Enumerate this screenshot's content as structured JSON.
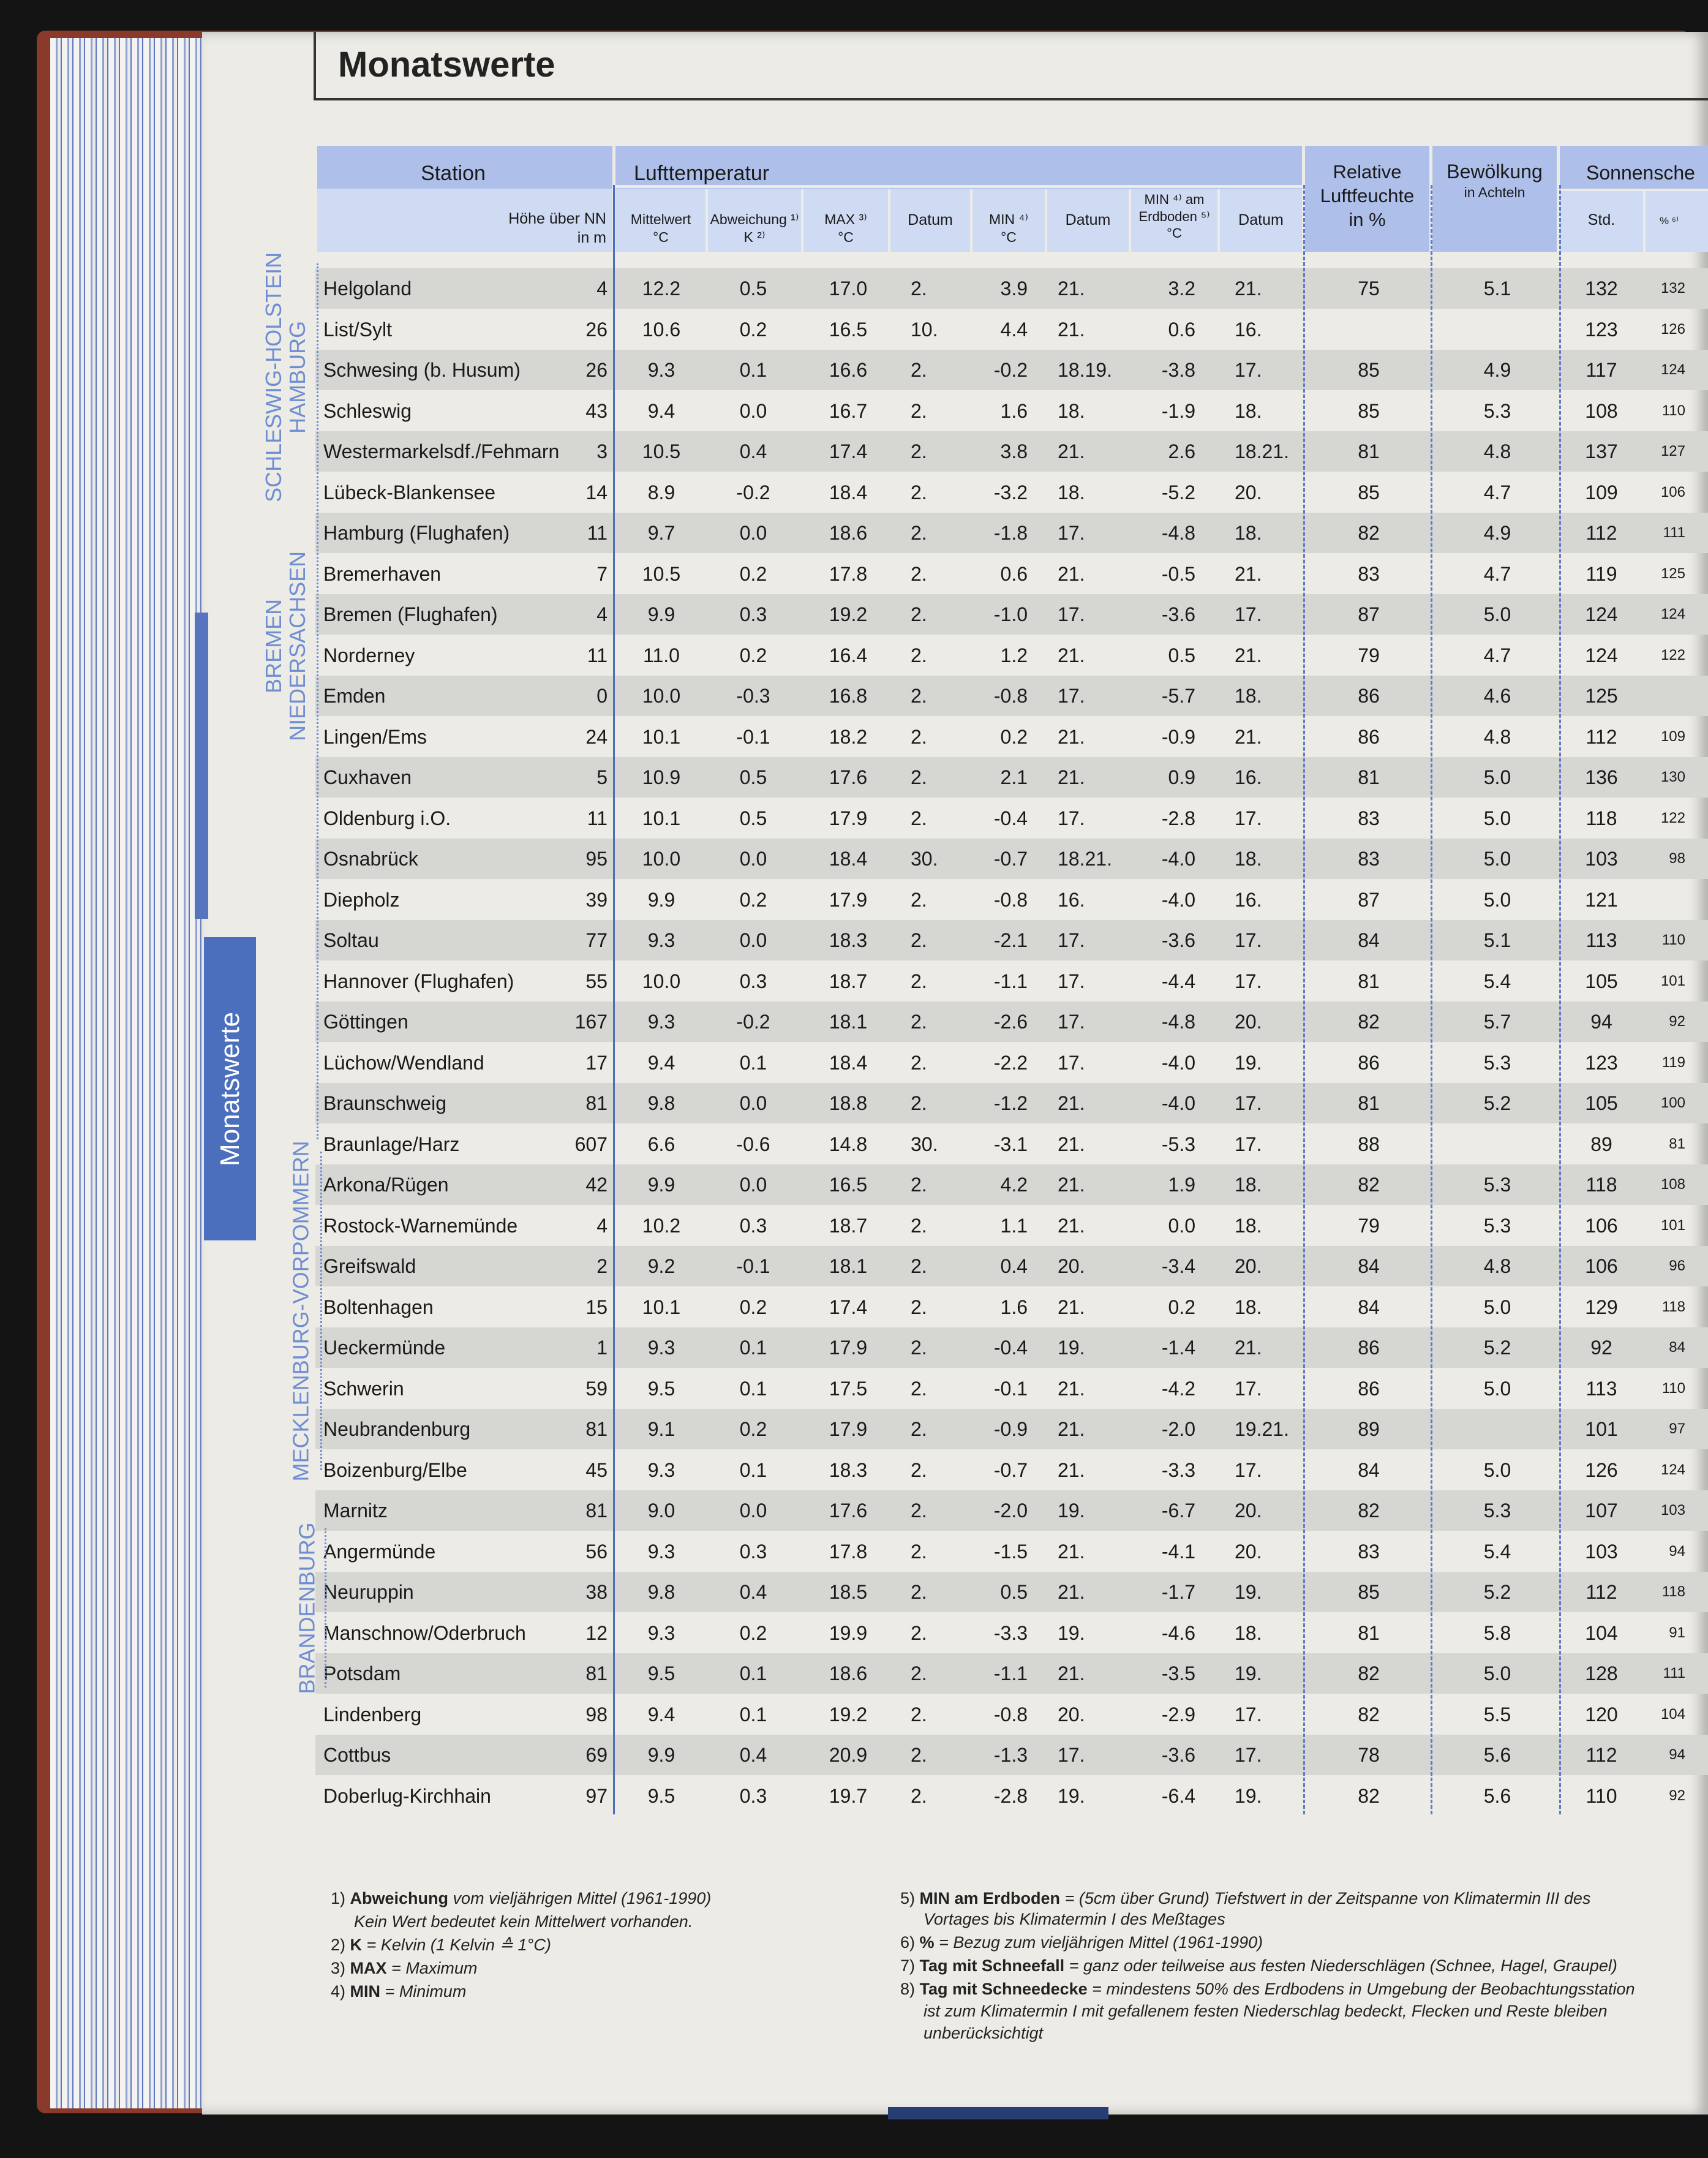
{
  "page": {
    "title": "Monatswerte",
    "side_tab": "Monatswerte"
  },
  "header": {
    "station": "Station",
    "hoehe": "Höhe über NN\nin m",
    "lufttemperatur": "Lufttemperatur",
    "mittelwert": "Mittelwert\n°C",
    "abweichung": "Abweichung ¹⁾\nK ²⁾",
    "max": "MAX ³⁾\n°C",
    "datum1": "Datum",
    "min": "MIN ⁴⁾\n°C",
    "datum2": "Datum",
    "min_erd": "MIN ⁴⁾ am\nErdboden ⁵⁾\n°C",
    "datum3": "Datum",
    "luftfeuchte": "Relative\nLuftfeuchte\nin %",
    "bewoelkung": "Bewölkung",
    "bewoelkung_unit": "in Achteln",
    "sonnenschein": "Sonnensche",
    "std": "Std.",
    "pct": "% ⁶⁾"
  },
  "states": [
    {
      "label": "SCHLESWIG-HOLSTEIN\nHAMBURG"
    },
    {
      "label": "BREMEN\nNIEDERSACHSEN"
    },
    {
      "label": "MECKLENBURG-VORPOMMERN"
    },
    {
      "label": "BRANDENBURG"
    }
  ],
  "rows": [
    {
      "station": "Helgoland",
      "hoehe": "4",
      "mittel": "12.2",
      "abw": "0.5",
      "max": "17.0",
      "dmax": "2.",
      "min": "3.9",
      "dmin": "21.",
      "erd": "3.2",
      "derd": "21.",
      "rf": "75",
      "bew": "5.1",
      "std": "132",
      "pct": "132"
    },
    {
      "station": "List/Sylt",
      "hoehe": "26",
      "mittel": "10.6",
      "abw": "0.2",
      "max": "16.5",
      "dmax": "10.",
      "min": "4.4",
      "dmin": "21.",
      "erd": "0.6",
      "derd": "16.",
      "rf": "",
      "bew": "",
      "std": "123",
      "pct": "126"
    },
    {
      "station": "Schwesing (b. Husum)",
      "hoehe": "26",
      "mittel": "9.3",
      "abw": "0.1",
      "max": "16.6",
      "dmax": "2.",
      "min": "-0.2",
      "dmin": "18.19.",
      "erd": "-3.8",
      "derd": "17.",
      "rf": "85",
      "bew": "4.9",
      "std": "117",
      "pct": "124"
    },
    {
      "station": "Schleswig",
      "hoehe": "43",
      "mittel": "9.4",
      "abw": "0.0",
      "max": "16.7",
      "dmax": "2.",
      "min": "1.6",
      "dmin": "18.",
      "erd": "-1.9",
      "derd": "18.",
      "rf": "85",
      "bew": "5.3",
      "std": "108",
      "pct": "110"
    },
    {
      "station": "Westermarkelsdf./Fehmarn",
      "hoehe": "3",
      "mittel": "10.5",
      "abw": "0.4",
      "max": "17.4",
      "dmax": "2.",
      "min": "3.8",
      "dmin": "21.",
      "erd": "2.6",
      "derd": "18.21.",
      "rf": "81",
      "bew": "4.8",
      "std": "137",
      "pct": "127"
    },
    {
      "station": "Lübeck-Blankensee",
      "hoehe": "14",
      "mittel": "8.9",
      "abw": "-0.2",
      "max": "18.4",
      "dmax": "2.",
      "min": "-3.2",
      "dmin": "18.",
      "erd": "-5.2",
      "derd": "20.",
      "rf": "85",
      "bew": "4.7",
      "std": "109",
      "pct": "106"
    },
    {
      "station": "Hamburg (Flughafen)",
      "hoehe": "11",
      "mittel": "9.7",
      "abw": "0.0",
      "max": "18.6",
      "dmax": "2.",
      "min": "-1.8",
      "dmin": "17.",
      "erd": "-4.8",
      "derd": "18.",
      "rf": "82",
      "bew": "4.9",
      "std": "112",
      "pct": "111"
    },
    {
      "station": "Bremerhaven",
      "hoehe": "7",
      "mittel": "10.5",
      "abw": "0.2",
      "max": "17.8",
      "dmax": "2.",
      "min": "0.6",
      "dmin": "21.",
      "erd": "-0.5",
      "derd": "21.",
      "rf": "83",
      "bew": "4.7",
      "std": "119",
      "pct": "125"
    },
    {
      "station": "Bremen (Flughafen)",
      "hoehe": "4",
      "mittel": "9.9",
      "abw": "0.3",
      "max": "19.2",
      "dmax": "2.",
      "min": "-1.0",
      "dmin": "17.",
      "erd": "-3.6",
      "derd": "17.",
      "rf": "87",
      "bew": "5.0",
      "std": "124",
      "pct": "124"
    },
    {
      "station": "Norderney",
      "hoehe": "11",
      "mittel": "11.0",
      "abw": "0.2",
      "max": "16.4",
      "dmax": "2.",
      "min": "1.2",
      "dmin": "21.",
      "erd": "0.5",
      "derd": "21.",
      "rf": "79",
      "bew": "4.7",
      "std": "124",
      "pct": "122"
    },
    {
      "station": "Emden",
      "hoehe": "0",
      "mittel": "10.0",
      "abw": "-0.3",
      "max": "16.8",
      "dmax": "2.",
      "min": "-0.8",
      "dmin": "17.",
      "erd": "-5.7",
      "derd": "18.",
      "rf": "86",
      "bew": "4.6",
      "std": "125",
      "pct": ""
    },
    {
      "station": "Lingen/Ems",
      "hoehe": "24",
      "mittel": "10.1",
      "abw": "-0.1",
      "max": "18.2",
      "dmax": "2.",
      "min": "0.2",
      "dmin": "21.",
      "erd": "-0.9",
      "derd": "21.",
      "rf": "86",
      "bew": "4.8",
      "std": "112",
      "pct": "109"
    },
    {
      "station": "Cuxhaven",
      "hoehe": "5",
      "mittel": "10.9",
      "abw": "0.5",
      "max": "17.6",
      "dmax": "2.",
      "min": "2.1",
      "dmin": "21.",
      "erd": "0.9",
      "derd": "16.",
      "rf": "81",
      "bew": "5.0",
      "std": "136",
      "pct": "130"
    },
    {
      "station": "Oldenburg i.O.",
      "hoehe": "11",
      "mittel": "10.1",
      "abw": "0.5",
      "max": "17.9",
      "dmax": "2.",
      "min": "-0.4",
      "dmin": "17.",
      "erd": "-2.8",
      "derd": "17.",
      "rf": "83",
      "bew": "5.0",
      "std": "118",
      "pct": "122"
    },
    {
      "station": "Osnabrück",
      "hoehe": "95",
      "mittel": "10.0",
      "abw": "0.0",
      "max": "18.4",
      "dmax": "30.",
      "min": "-0.7",
      "dmin": "18.21.",
      "erd": "-4.0",
      "derd": "18.",
      "rf": "83",
      "bew": "5.0",
      "std": "103",
      "pct": "98"
    },
    {
      "station": "Diepholz",
      "hoehe": "39",
      "mittel": "9.9",
      "abw": "0.2",
      "max": "17.9",
      "dmax": "2.",
      "min": "-0.8",
      "dmin": "16.",
      "erd": "-4.0",
      "derd": "16.",
      "rf": "87",
      "bew": "5.0",
      "std": "121",
      "pct": ""
    },
    {
      "station": "Soltau",
      "hoehe": "77",
      "mittel": "9.3",
      "abw": "0.0",
      "max": "18.3",
      "dmax": "2.",
      "min": "-2.1",
      "dmin": "17.",
      "erd": "-3.6",
      "derd": "17.",
      "rf": "84",
      "bew": "5.1",
      "std": "113",
      "pct": "110"
    },
    {
      "station": "Hannover (Flughafen)",
      "hoehe": "55",
      "mittel": "10.0",
      "abw": "0.3",
      "max": "18.7",
      "dmax": "2.",
      "min": "-1.1",
      "dmin": "17.",
      "erd": "-4.4",
      "derd": "17.",
      "rf": "81",
      "bew": "5.4",
      "std": "105",
      "pct": "101"
    },
    {
      "station": "Göttingen",
      "hoehe": "167",
      "mittel": "9.3",
      "abw": "-0.2",
      "max": "18.1",
      "dmax": "2.",
      "min": "-2.6",
      "dmin": "17.",
      "erd": "-4.8",
      "derd": "20.",
      "rf": "82",
      "bew": "5.7",
      "std": "94",
      "pct": "92"
    },
    {
      "station": "Lüchow/Wendland",
      "hoehe": "17",
      "mittel": "9.4",
      "abw": "0.1",
      "max": "18.4",
      "dmax": "2.",
      "min": "-2.2",
      "dmin": "17.",
      "erd": "-4.0",
      "derd": "19.",
      "rf": "86",
      "bew": "5.3",
      "std": "123",
      "pct": "119"
    },
    {
      "station": "Braunschweig",
      "hoehe": "81",
      "mittel": "9.8",
      "abw": "0.0",
      "max": "18.8",
      "dmax": "2.",
      "min": "-1.2",
      "dmin": "21.",
      "erd": "-4.0",
      "derd": "17.",
      "rf": "81",
      "bew": "5.2",
      "std": "105",
      "pct": "100"
    },
    {
      "station": "Braunlage/Harz",
      "hoehe": "607",
      "mittel": "6.6",
      "abw": "-0.6",
      "max": "14.8",
      "dmax": "30.",
      "min": "-3.1",
      "dmin": "21.",
      "erd": "-5.3",
      "derd": "17.",
      "rf": "88",
      "bew": "",
      "std": "89",
      "pct": "81"
    },
    {
      "station": "Arkona/Rügen",
      "hoehe": "42",
      "mittel": "9.9",
      "abw": "0.0",
      "max": "16.5",
      "dmax": "2.",
      "min": "4.2",
      "dmin": "21.",
      "erd": "1.9",
      "derd": "18.",
      "rf": "82",
      "bew": "5.3",
      "std": "118",
      "pct": "108"
    },
    {
      "station": "Rostock-Warnemünde",
      "hoehe": "4",
      "mittel": "10.2",
      "abw": "0.3",
      "max": "18.7",
      "dmax": "2.",
      "min": "1.1",
      "dmin": "21.",
      "erd": "0.0",
      "derd": "18.",
      "rf": "79",
      "bew": "5.3",
      "std": "106",
      "pct": "101"
    },
    {
      "station": "Greifswald",
      "hoehe": "2",
      "mittel": "9.2",
      "abw": "-0.1",
      "max": "18.1",
      "dmax": "2.",
      "min": "0.4",
      "dmin": "20.",
      "erd": "-3.4",
      "derd": "20.",
      "rf": "84",
      "bew": "4.8",
      "std": "106",
      "pct": "96"
    },
    {
      "station": "Boltenhagen",
      "hoehe": "15",
      "mittel": "10.1",
      "abw": "0.2",
      "max": "17.4",
      "dmax": "2.",
      "min": "1.6",
      "dmin": "21.",
      "erd": "0.2",
      "derd": "18.",
      "rf": "84",
      "bew": "5.0",
      "std": "129",
      "pct": "118"
    },
    {
      "station": "Ueckermünde",
      "hoehe": "1",
      "mittel": "9.3",
      "abw": "0.1",
      "max": "17.9",
      "dmax": "2.",
      "min": "-0.4",
      "dmin": "19.",
      "erd": "-1.4",
      "derd": "21.",
      "rf": "86",
      "bew": "5.2",
      "std": "92",
      "pct": "84"
    },
    {
      "station": "Schwerin",
      "hoehe": "59",
      "mittel": "9.5",
      "abw": "0.1",
      "max": "17.5",
      "dmax": "2.",
      "min": "-0.1",
      "dmin": "21.",
      "erd": "-4.2",
      "derd": "17.",
      "rf": "86",
      "bew": "5.0",
      "std": "113",
      "pct": "110"
    },
    {
      "station": "Neubrandenburg",
      "hoehe": "81",
      "mittel": "9.1",
      "abw": "0.2",
      "max": "17.9",
      "dmax": "2.",
      "min": "-0.9",
      "dmin": "21.",
      "erd": "-2.0",
      "derd": "19.21.",
      "rf": "89",
      "bew": "",
      "std": "101",
      "pct": "97"
    },
    {
      "station": "Boizenburg/Elbe",
      "hoehe": "45",
      "mittel": "9.3",
      "abw": "0.1",
      "max": "18.3",
      "dmax": "2.",
      "min": "-0.7",
      "dmin": "21.",
      "erd": "-3.3",
      "derd": "17.",
      "rf": "84",
      "bew": "5.0",
      "std": "126",
      "pct": "124"
    },
    {
      "station": "Marnitz",
      "hoehe": "81",
      "mittel": "9.0",
      "abw": "0.0",
      "max": "17.6",
      "dmax": "2.",
      "min": "-2.0",
      "dmin": "19.",
      "erd": "-6.7",
      "derd": "20.",
      "rf": "82",
      "bew": "5.3",
      "std": "107",
      "pct": "103"
    },
    {
      "station": "Angermünde",
      "hoehe": "56",
      "mittel": "9.3",
      "abw": "0.3",
      "max": "17.8",
      "dmax": "2.",
      "min": "-1.5",
      "dmin": "21.",
      "erd": "-4.1",
      "derd": "20.",
      "rf": "83",
      "bew": "5.4",
      "std": "103",
      "pct": "94"
    },
    {
      "station": "Neuruppin",
      "hoehe": "38",
      "mittel": "9.8",
      "abw": "0.4",
      "max": "18.5",
      "dmax": "2.",
      "min": "0.5",
      "dmin": "21.",
      "erd": "-1.7",
      "derd": "19.",
      "rf": "85",
      "bew": "5.2",
      "std": "112",
      "pct": "118"
    },
    {
      "station": "Manschnow/Oderbruch",
      "hoehe": "12",
      "mittel": "9.3",
      "abw": "0.2",
      "max": "19.9",
      "dmax": "2.",
      "min": "-3.3",
      "dmin": "19.",
      "erd": "-4.6",
      "derd": "18.",
      "rf": "81",
      "bew": "5.8",
      "std": "104",
      "pct": "91"
    },
    {
      "station": "Potsdam",
      "hoehe": "81",
      "mittel": "9.5",
      "abw": "0.1",
      "max": "18.6",
      "dmax": "2.",
      "min": "-1.1",
      "dmin": "21.",
      "erd": "-3.5",
      "derd": "19.",
      "rf": "82",
      "bew": "5.0",
      "std": "128",
      "pct": "111"
    },
    {
      "station": "Lindenberg",
      "hoehe": "98",
      "mittel": "9.4",
      "abw": "0.1",
      "max": "19.2",
      "dmax": "2.",
      "min": "-0.8",
      "dmin": "20.",
      "erd": "-2.9",
      "derd": "17.",
      "rf": "82",
      "bew": "5.5",
      "std": "120",
      "pct": "104"
    },
    {
      "station": "Cottbus",
      "hoehe": "69",
      "mittel": "9.9",
      "abw": "0.4",
      "max": "20.9",
      "dmax": "2.",
      "min": "-1.3",
      "dmin": "17.",
      "erd": "-3.6",
      "derd": "17.",
      "rf": "78",
      "bew": "5.6",
      "std": "112",
      "pct": "94"
    },
    {
      "station": "Doberlug-Kirchhain",
      "hoehe": "97",
      "mittel": "9.5",
      "abw": "0.3",
      "max": "19.7",
      "dmax": "2.",
      "min": "-2.8",
      "dmin": "19.",
      "erd": "-6.4",
      "derd": "19.",
      "rf": "82",
      "bew": "5.6",
      "std": "110",
      "pct": "92"
    }
  ],
  "footnotes": {
    "f1_num": "1)",
    "f1_term": "Abweichung",
    "f1_text": "vom vieljährigen Mittel (1961-1990)",
    "f1_text2": "Kein Wert bedeutet kein Mittelwert vorhanden.",
    "f2_num": "2)",
    "f2_term": "K",
    "f2_text": "= Kelvin (1 Kelvin ≙ 1°C)",
    "f3_num": "3)",
    "f3_term": "MAX",
    "f3_text": "= Maximum",
    "f4_num": "4)",
    "f4_term": "MIN",
    "f4_text": "= Minimum",
    "f5_num": "5)",
    "f5_term": "MIN am Erdboden",
    "f5_text": "= (5cm über Grund) Tiefstwert in der Zeitspanne von Klimatermin III des",
    "f5_text2": "Vortages bis Klimatermin I des Meßtages",
    "f6_num": "6)",
    "f6_term": "%",
    "f6_text": "= Bezug zum vieljährigen Mittel (1961-1990)",
    "f7_num": "7)",
    "f7_term": "Tag mit Schneefall",
    "f7_text": "= ganz oder teilweise aus festen Niederschlägen (Schnee, Hagel, Graupel)",
    "f8_num": "8)",
    "f8_term": "Tag mit Schneedecke",
    "f8_text": "= mindestens 50% des Erdbodens in Umgebung der Beobachtungsstation",
    "f8_text2": "ist zum Klimatermin I mit gefallenem festen Niederschlag bedeckt, Flecken und Reste bleiben",
    "f8_text3": "unberücksichtigt"
  },
  "colors": {
    "header_band": "#aec0ea",
    "header_sub": "#cfdaf3",
    "accent_blue": "#4c6fbd",
    "row_stripe": "#d6d6d3",
    "page": "#ecebe6"
  }
}
